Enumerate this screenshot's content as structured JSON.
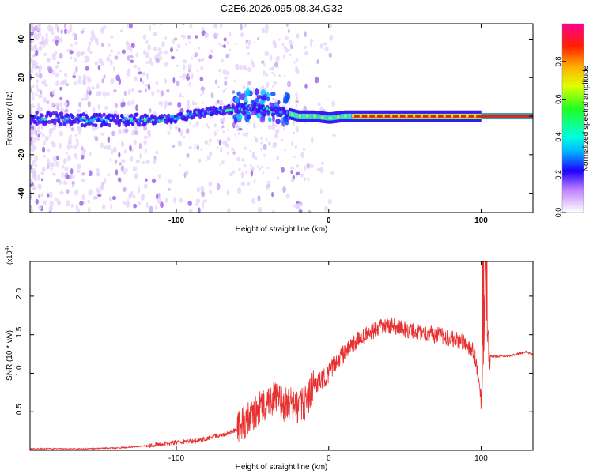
{
  "title": "C2E6.2026.095.08.34.G32",
  "colors": {
    "background": "#ffffff",
    "axis": "#000000",
    "snr_line": "#e83030",
    "spectrogram_line": "#e02020"
  },
  "chart_data": [
    {
      "type": "heatmap",
      "name": "spectrogram",
      "xlabel": "Height of straight line (km)",
      "ylabel": "Frequency (Hz)",
      "xlim": [
        -196,
        134
      ],
      "ylim": [
        -50,
        48
      ],
      "x_ticks": [
        -100,
        0,
        100
      ],
      "y_ticks": [
        -40,
        -20,
        0,
        20,
        40
      ],
      "ridge": {
        "x": [
          -196,
          -180,
          -160,
          -140,
          -120,
          -100,
          -90,
          -80,
          -70,
          -60,
          -50,
          -40,
          -30,
          -25,
          -20,
          -10,
          0,
          10,
          20,
          50,
          80,
          100,
          134
        ],
        "y": [
          -1,
          -1,
          -2,
          -2,
          -2,
          -1,
          1,
          2,
          3,
          4,
          5,
          3,
          2,
          1,
          0,
          0,
          -1,
          0,
          0,
          0,
          0,
          0,
          0
        ]
      },
      "colorbar": {
        "label": "Normalized spectral amplitude",
        "ticks": [
          0.0,
          0.2,
          0.4,
          0.6,
          0.8
        ],
        "tick_labels": [
          "0.0",
          "0.2",
          "0.4",
          "0.6",
          "0.8"
        ],
        "range": [
          0,
          1
        ]
      }
    },
    {
      "type": "line",
      "name": "snr",
      "xlabel": "Height of straight line (km)",
      "ylabel": "SNR (10 * v/v)",
      "scale_label": "(x10",
      "scale_exponent": "4",
      "xlim": [
        -196,
        134
      ],
      "ylim": [
        0,
        2.45
      ],
      "x_ticks": [
        -100,
        0,
        100
      ],
      "y_ticks": [
        0.5,
        1.0,
        1.5,
        2.0
      ],
      "y_tick_labels": [
        "0.5",
        "1.0",
        "1.5",
        "2.0"
      ],
      "series": [
        {
          "name": "SNR",
          "x": [
            -196,
            -180,
            -160,
            -140,
            -130,
            -120,
            -110,
            -100,
            -90,
            -80,
            -75,
            -70,
            -65,
            -60,
            -55,
            -50,
            -45,
            -40,
            -35,
            -30,
            -25,
            -20,
            -15,
            -10,
            -5,
            0,
            5,
            10,
            15,
            20,
            25,
            30,
            35,
            40,
            45,
            50,
            55,
            60,
            65,
            70,
            75,
            80,
            85,
            90,
            95,
            98,
            100,
            102,
            103,
            104,
            106,
            110,
            120,
            130,
            134
          ],
          "y": [
            0.02,
            0.02,
            0.02,
            0.03,
            0.04,
            0.06,
            0.08,
            0.1,
            0.12,
            0.15,
            0.18,
            0.2,
            0.23,
            0.28,
            0.36,
            0.45,
            0.55,
            0.62,
            0.7,
            0.58,
            0.62,
            0.55,
            0.62,
            0.85,
            0.9,
            1.0,
            1.15,
            1.25,
            1.35,
            1.45,
            1.5,
            1.55,
            1.6,
            1.62,
            1.6,
            1.57,
            1.55,
            1.53,
            1.52,
            1.5,
            1.48,
            1.45,
            1.42,
            1.38,
            1.3,
            1.0,
            0.6,
            1.5,
            2.4,
            1.35,
            1.22,
            1.22,
            1.23,
            1.28,
            1.24
          ]
        }
      ]
    }
  ]
}
